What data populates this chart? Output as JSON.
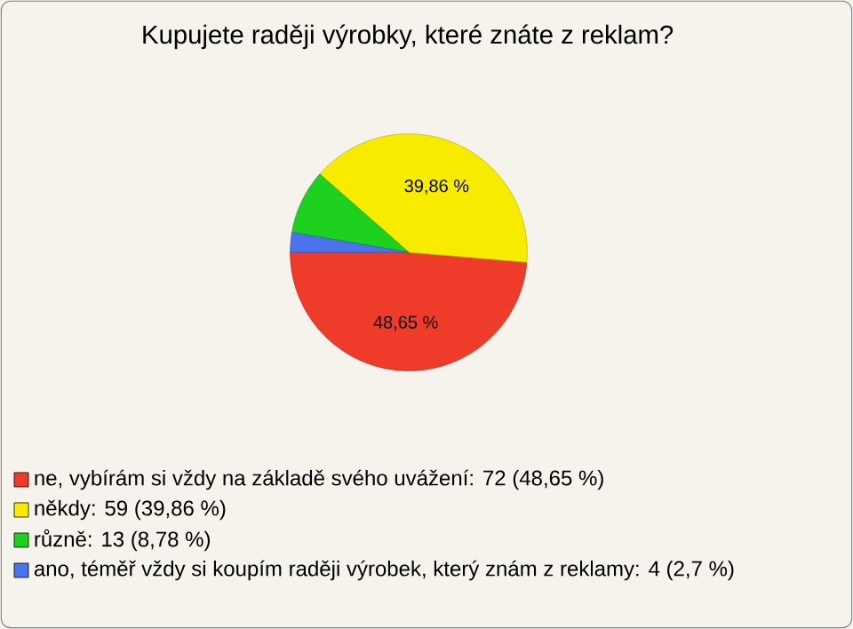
{
  "chart_data": {
    "type": "pie",
    "title": "Kupujete raději výrobky, které znáte z reklam?",
    "categories": [
      "ne, vybírám si vždy na základě svého uvážení: 72 (48,65 %)",
      "někdy: 59 (39,86 %)",
      "různě: 13 (8,78 %)",
      "ano, téměř vždy si koupím raději výrobek, který znám z reklamy: 4 (2,7 %)"
    ],
    "values": [
      48.65,
      39.86,
      8.78,
      2.7
    ],
    "colors": [
      "#ee3b2a",
      "#f7ec00",
      "#1fd11f",
      "#4a74ee"
    ],
    "value_labels": [
      "48,65 %",
      "39,86 %",
      null,
      null
    ],
    "legend": "bottom"
  }
}
